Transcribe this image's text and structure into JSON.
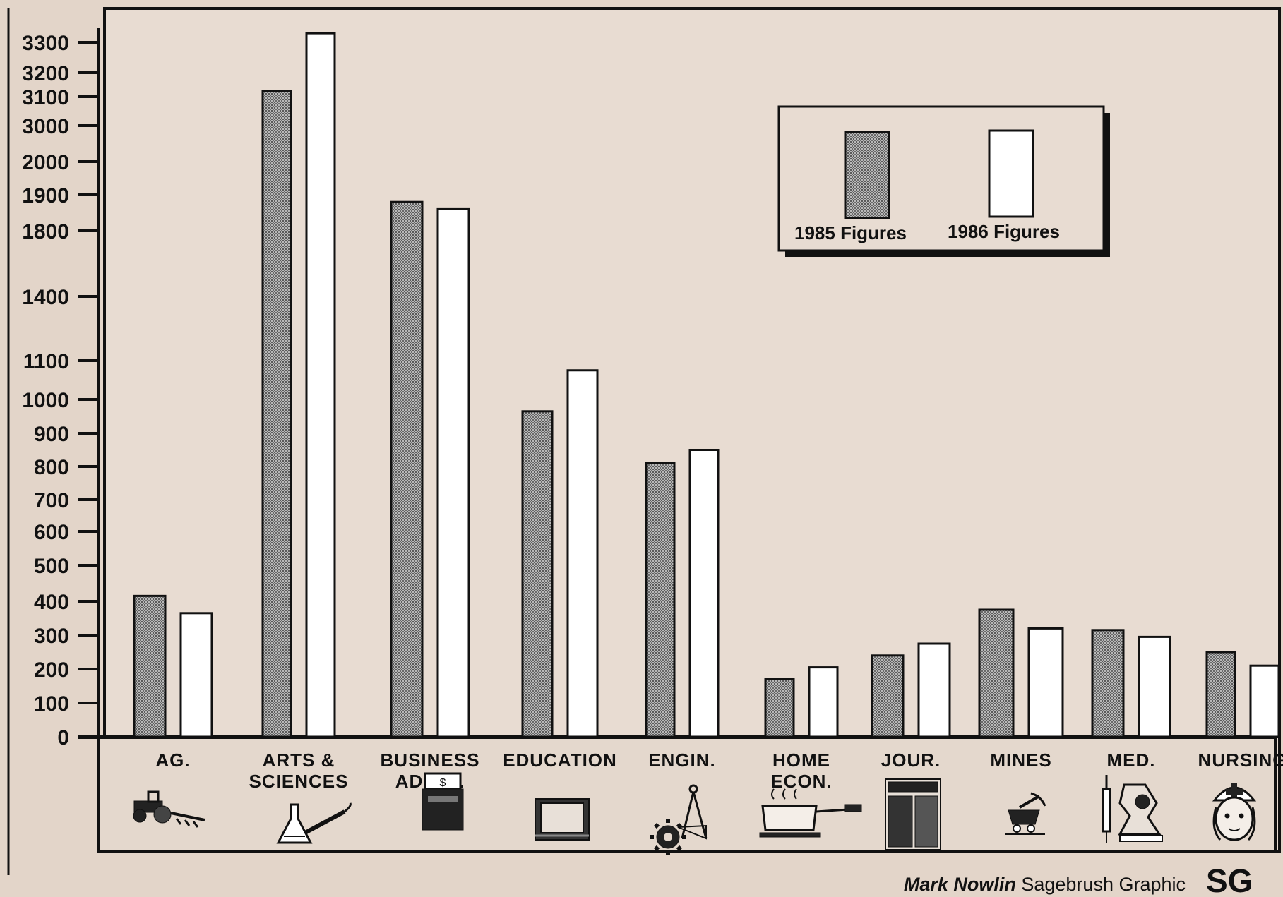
{
  "chart_data": {
    "type": "bar",
    "yticks": [
      0,
      100,
      200,
      300,
      400,
      500,
      600,
      700,
      800,
      900,
      1000,
      1100,
      1400,
      1800,
      1900,
      2000,
      3000,
      3100,
      3200,
      3300
    ],
    "categories": [
      [
        "AG."
      ],
      [
        "ARTS &",
        "SCIENCES"
      ],
      [
        "BUSINESS",
        "ADMIN."
      ],
      [
        "EDUCATION"
      ],
      [
        "ENGIN."
      ],
      [
        "HOME",
        "ECON."
      ],
      [
        "JOUR."
      ],
      [
        "MINES"
      ],
      [
        "MED."
      ],
      [
        "NURSING"
      ]
    ],
    "series": [
      {
        "name": "1985 Figures",
        "color": "#9a9a9a",
        "pattern": "stipple",
        "values": [
          415,
          3125,
          1880,
          965,
          810,
          170,
          240,
          375,
          315,
          250
        ]
      },
      {
        "name": "1986 Figures",
        "color": "#ffffff",
        "values": [
          365,
          3330,
          1860,
          1075,
          850,
          205,
          275,
          320,
          295,
          210
        ]
      }
    ],
    "legend_position": "top-right",
    "grid": false,
    "icons": [
      "tractor-icon",
      "flask-and-brush-icon",
      "cash-register-icon",
      "slate-icon",
      "gear-and-compass-icon",
      "steaming-pot-icon",
      "newspaper-icon",
      "mine-cart-icon",
      "microscope-and-syringe-icon",
      "nurse-icon"
    ]
  },
  "credit": {
    "author": "Mark Nowlin",
    "text": " Sagebrush Graphic",
    "logo_text": "SG"
  }
}
